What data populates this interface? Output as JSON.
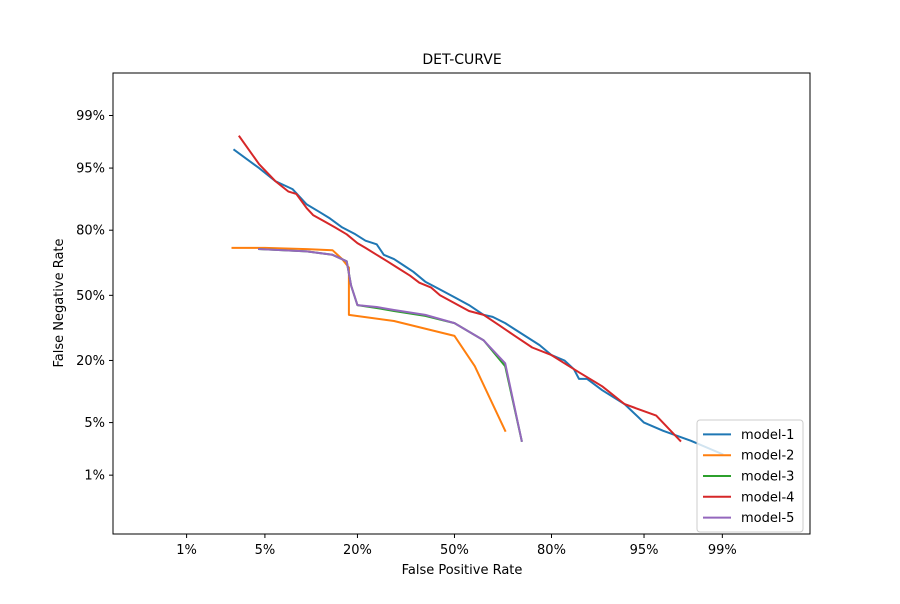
{
  "chart_data": {
    "type": "line",
    "title": "DET-CURVE",
    "xlabel": "False Positive Rate",
    "ylabel": "False Negative Rate",
    "xscale": "probit",
    "yscale": "probit",
    "xlim": [
      0.0015,
      0.999
    ],
    "ylim": [
      0.001,
      0.998
    ],
    "xticks": [
      {
        "value": 0.01,
        "label": "1%"
      },
      {
        "value": 0.05,
        "label": "5%"
      },
      {
        "value": 0.2,
        "label": "20%"
      },
      {
        "value": 0.5,
        "label": "50%"
      },
      {
        "value": 0.8,
        "label": "80%"
      },
      {
        "value": 0.95,
        "label": "95%"
      },
      {
        "value": 0.99,
        "label": "99%"
      }
    ],
    "yticks": [
      {
        "value": 0.01,
        "label": "1%"
      },
      {
        "value": 0.05,
        "label": "5%"
      },
      {
        "value": 0.2,
        "label": "20%"
      },
      {
        "value": 0.5,
        "label": "50%"
      },
      {
        "value": 0.8,
        "label": "80%"
      },
      {
        "value": 0.95,
        "label": "95%"
      },
      {
        "value": 0.99,
        "label": "99%"
      }
    ],
    "grid": false,
    "legend_position": "lower-right",
    "series": [
      {
        "name": "model-1",
        "color": "#1f77b4",
        "x": [
          0.028,
          0.045,
          0.06,
          0.08,
          0.1,
          0.12,
          0.14,
          0.165,
          0.195,
          0.22,
          0.25,
          0.27,
          0.3,
          0.33,
          0.36,
          0.4,
          0.45,
          0.5,
          0.55,
          0.6,
          0.63,
          0.67,
          0.7,
          0.73,
          0.77,
          0.8,
          0.83,
          0.85,
          0.86,
          0.875,
          0.9,
          0.93,
          0.95,
          0.965,
          0.98,
          0.99
        ],
        "y": [
          0.97,
          0.95,
          0.93,
          0.915,
          0.88,
          0.86,
          0.84,
          0.81,
          0.785,
          0.76,
          0.745,
          0.7,
          0.68,
          0.65,
          0.62,
          0.57,
          0.53,
          0.49,
          0.45,
          0.4,
          0.39,
          0.36,
          0.33,
          0.3,
          0.26,
          0.22,
          0.2,
          0.17,
          0.14,
          0.14,
          0.11,
          0.08,
          0.05,
          0.04,
          0.03,
          0.02
        ]
      },
      {
        "name": "model-2",
        "color": "#ff7f0e",
        "x": [
          0.027,
          0.05,
          0.1,
          0.145,
          0.165,
          0.18,
          0.18,
          0.3,
          0.5,
          0.57,
          0.67
        ],
        "y": [
          0.73,
          0.73,
          0.725,
          0.72,
          0.68,
          0.64,
          0.4,
          0.37,
          0.3,
          0.18,
          0.04
        ]
      },
      {
        "name": "model-3",
        "color": "#2ca02c",
        "x": [
          0.045,
          0.1,
          0.145,
          0.175,
          0.185,
          0.2,
          0.25,
          0.3,
          0.4,
          0.5,
          0.6,
          0.67,
          0.72
        ],
        "y": [
          0.725,
          0.715,
          0.7,
          0.67,
          0.55,
          0.45,
          0.435,
          0.42,
          0.395,
          0.36,
          0.28,
          0.18,
          0.03
        ]
      },
      {
        "name": "model-4",
        "color": "#d62728",
        "x": [
          0.031,
          0.045,
          0.06,
          0.075,
          0.085,
          0.1,
          0.11,
          0.13,
          0.15,
          0.175,
          0.2,
          0.22,
          0.25,
          0.28,
          0.31,
          0.35,
          0.38,
          0.42,
          0.45,
          0.5,
          0.55,
          0.6,
          0.65,
          0.7,
          0.75,
          0.8,
          0.83,
          0.86,
          0.9,
          0.93,
          0.96,
          0.975
        ],
        "y": [
          0.98,
          0.955,
          0.93,
          0.91,
          0.905,
          0.87,
          0.85,
          0.83,
          0.81,
          0.785,
          0.75,
          0.73,
          0.7,
          0.67,
          0.64,
          0.6,
          0.565,
          0.54,
          0.5,
          0.46,
          0.42,
          0.4,
          0.35,
          0.3,
          0.25,
          0.22,
          0.19,
          0.16,
          0.12,
          0.08,
          0.06,
          0.03
        ]
      },
      {
        "name": "model-5",
        "color": "#9467bd",
        "x": [
          0.045,
          0.1,
          0.145,
          0.175,
          0.185,
          0.2,
          0.25,
          0.3,
          0.4,
          0.5,
          0.6,
          0.67,
          0.72
        ],
        "y": [
          0.725,
          0.715,
          0.7,
          0.67,
          0.55,
          0.45,
          0.44,
          0.425,
          0.4,
          0.36,
          0.28,
          0.19,
          0.03
        ]
      }
    ]
  }
}
